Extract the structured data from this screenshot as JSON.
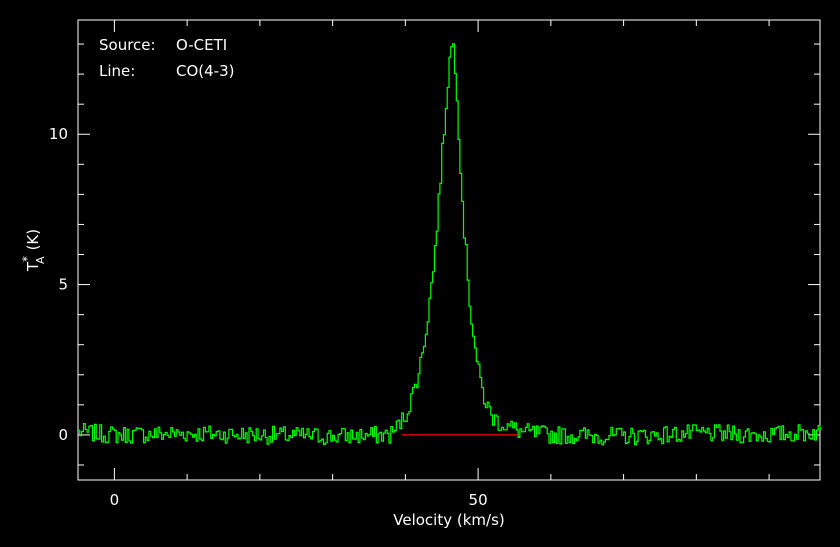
{
  "annotation": {
    "source_key": "Source:",
    "source_value": "O-CETI",
    "line_key": "Line:",
    "line_value": "CO(4-3)"
  },
  "chart_data": {
    "type": "line",
    "xlabel": "Velocity (km/s)",
    "ylabel": "T*A (K)",
    "ylabel_main": "T",
    "ylabel_sup": "*",
    "ylabel_sub": "A",
    "ylabel_unit": "(K)",
    "xlim": [
      -5,
      97
    ],
    "ylim": [
      -1.5,
      13.8
    ],
    "x_ticks": [
      0,
      50
    ],
    "x_tick_labels": [
      "0",
      "50"
    ],
    "y_ticks": [
      0,
      5,
      10
    ],
    "y_tick_labels": [
      "0",
      "5",
      "10"
    ],
    "x_minor_step": 10,
    "y_minor_step": 1,
    "grid": false,
    "series": [
      {
        "color": "#00ff00",
        "x": [
          -5,
          0,
          10,
          20,
          30,
          38,
          40,
          41,
          42,
          43,
          44,
          45,
          46,
          46.5,
          47,
          47.5,
          48,
          49,
          50,
          51,
          52,
          53,
          54,
          55,
          56,
          60,
          70,
          80,
          90,
          97
        ],
        "y": [
          0.1,
          0.0,
          0.05,
          0.0,
          -0.05,
          0.0,
          0.6,
          1.3,
          2.2,
          3.7,
          5.8,
          9.0,
          12.2,
          13.2,
          12.0,
          9.5,
          7.2,
          4.1,
          2.2,
          1.1,
          0.6,
          0.4,
          0.3,
          0.2,
          0.1,
          0.0,
          -0.05,
          0.05,
          0.0,
          0.1
        ],
        "noise_amplitude": 0.3
      },
      {
        "color": "#ff0000",
        "x": [
          39.5,
          55.5
        ],
        "y": [
          0,
          0
        ]
      }
    ]
  }
}
